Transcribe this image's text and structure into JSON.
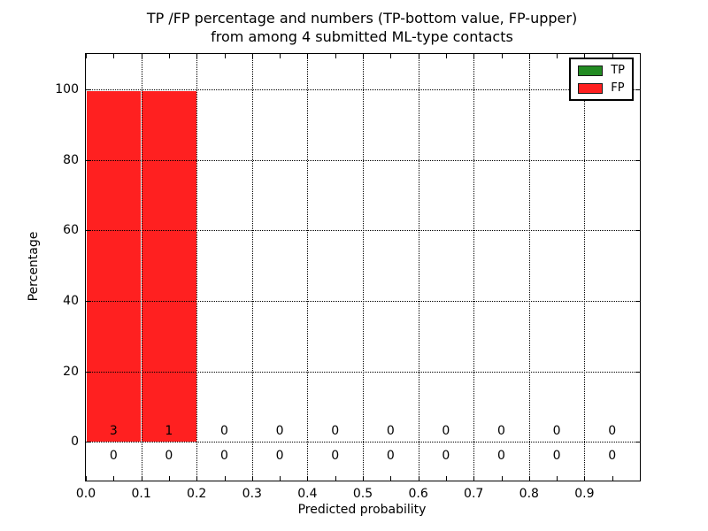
{
  "title": {
    "line1": "TP /FP percentage and numbers (TP-bottom value, FP-upper)",
    "line2": "from among 4 submitted ML-type contacts"
  },
  "axes": {
    "xlabel": "Predicted probability",
    "ylabel": "Percentage"
  },
  "legend": {
    "position": "upper right",
    "items": [
      {
        "label": "TP",
        "color": "#228b22"
      },
      {
        "label": "FP",
        "color": "#ff2020"
      }
    ]
  },
  "chart_data": {
    "type": "bar",
    "title": "TP /FP percentage and numbers (TP-bottom value, FP-upper) from among 4 submitted ML-type contacts",
    "xlabel": "Predicted probability",
    "ylabel": "Percentage",
    "xlim": [
      0.0,
      1.0
    ],
    "ylim": [
      -11,
      110
    ],
    "x_tick_labels": [
      "0.0",
      "0.1",
      "0.2",
      "0.3",
      "0.4",
      "0.5",
      "0.6",
      "0.7",
      "0.8",
      "0.9"
    ],
    "x_tick_values": [
      0.0,
      0.1,
      0.2,
      0.3,
      0.4,
      0.5,
      0.6,
      0.7,
      0.8,
      0.9
    ],
    "x_minor_tick_step": 0.05,
    "y_ticks": [
      0,
      20,
      40,
      60,
      80,
      100
    ],
    "grid": "dotted",
    "grid_x_values": [
      0.1,
      0.2,
      0.3,
      0.4,
      0.5,
      0.6,
      0.7,
      0.8,
      0.9
    ],
    "bin_edges": [
      0.0,
      0.1,
      0.2,
      0.3,
      0.4,
      0.5,
      0.6,
      0.7,
      0.8,
      0.9,
      1.0
    ],
    "legend_position": "upper right",
    "series": [
      {
        "name": "TP",
        "color": "#228b22",
        "percent": [
          0,
          0,
          0,
          0,
          0,
          0,
          0,
          0,
          0,
          0
        ],
        "counts": [
          0,
          0,
          0,
          0,
          0,
          0,
          0,
          0,
          0,
          0
        ],
        "count_label_row": "bottom"
      },
      {
        "name": "FP",
        "color": "#ff2020",
        "percent": [
          100,
          100,
          0,
          0,
          0,
          0,
          0,
          0,
          0,
          0
        ],
        "counts": [
          3,
          1,
          0,
          0,
          0,
          0,
          0,
          0,
          0,
          0
        ],
        "count_label_row": "top"
      }
    ],
    "total_contacts": 4
  }
}
